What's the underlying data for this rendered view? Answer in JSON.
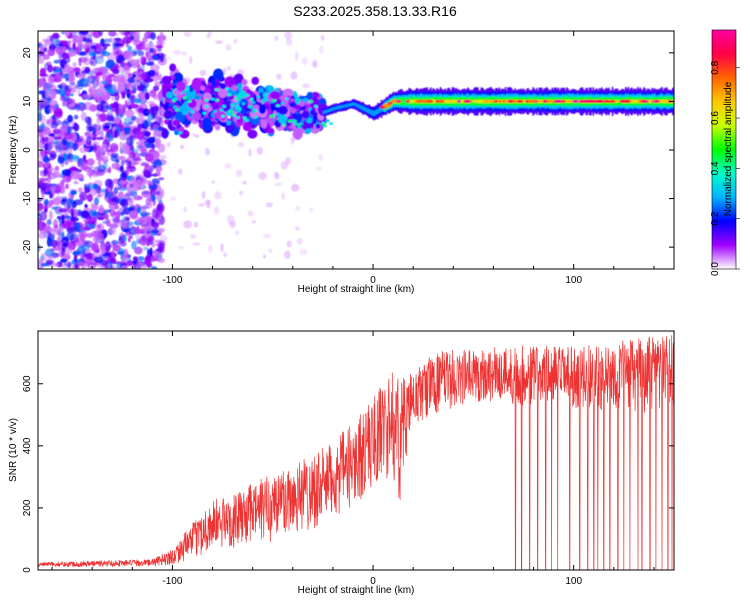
{
  "chart_data": [
    {
      "type": "heatmap",
      "title": "S233.2025.358.13.33.R16",
      "xlabel": "Height of straight line (km)",
      "ylabel": "Frequency (Hz)",
      "xlim": [
        -167,
        150
      ],
      "ylim": [
        -24.5,
        24.5
      ],
      "x_ticks": [
        -100,
        0,
        100
      ],
      "y_ticks": [
        -20,
        -10,
        0,
        10,
        20
      ],
      "grid": false,
      "colorbar": {
        "label": "Normalized spectral amplitude",
        "range": [
          0,
          0.95
        ],
        "ticks": [
          0.0,
          0.2,
          0.4,
          0.6,
          0.8
        ],
        "colors": [
          "#ffffff",
          "#a000ff",
          "#0000ff",
          "#00b4ff",
          "#00ffc8",
          "#00ff00",
          "#c8ff00",
          "#ffc800",
          "#ff6400",
          "#ff0046",
          "#ff00a0"
        ]
      },
      "features": {
        "ridge_frequency_by_height": {
          "x": [
            -100,
            -80,
            -60,
            -40,
            -30,
            -20,
            -10,
            0,
            10,
            30,
            60,
            100,
            150
          ],
          "freq": [
            10,
            10,
            9,
            7.5,
            7,
            8.5,
            9.5,
            7.5,
            10,
            10,
            10,
            10,
            10
          ]
        },
        "scatter_region_x": [
          -167,
          -105
        ],
        "scatter_freq_range": [
          -24.5,
          24.5
        ]
      }
    },
    {
      "type": "line",
      "xlabel": "Height of straight line (km)",
      "ylabel": "SNR (10 * v/v)",
      "xlim": [
        -167,
        150
      ],
      "ylim": [
        0,
        770
      ],
      "x_ticks": [
        -100,
        0,
        100
      ],
      "y_ticks": [
        0,
        200,
        400,
        600
      ],
      "grid": false,
      "series": [
        {
          "color": "#ee3333",
          "envelope": {
            "x": [
              -167,
              -140,
              -110,
              -100,
              -90,
              -80,
              -70,
              -60,
              -50,
              -40,
              -30,
              -20,
              -10,
              0,
              5,
              10,
              13,
              16,
              20,
              30,
              40,
              60,
              80,
              100,
              120,
              150
            ],
            "low": [
              10,
              10,
              12,
              15,
              40,
              60,
              70,
              85,
              90,
              110,
              130,
              160,
              200,
              260,
              300,
              280,
              200,
              350,
              450,
              500,
              520,
              540,
              520,
              520,
              510,
              500
            ],
            "high": [
              25,
              30,
              35,
              70,
              150,
              230,
              240,
              280,
              320,
              350,
              380,
              410,
              480,
              560,
              610,
              640,
              650,
              620,
              640,
              700,
              710,
              720,
              730,
              720,
              740,
              760
            ]
          },
          "dropouts_x": [
            71,
            74,
            78,
            82,
            86,
            89,
            92,
            98,
            103,
            107,
            110,
            112,
            115,
            118,
            122,
            125,
            128,
            132,
            134,
            138,
            141,
            144,
            147,
            149
          ]
        }
      ]
    }
  ]
}
